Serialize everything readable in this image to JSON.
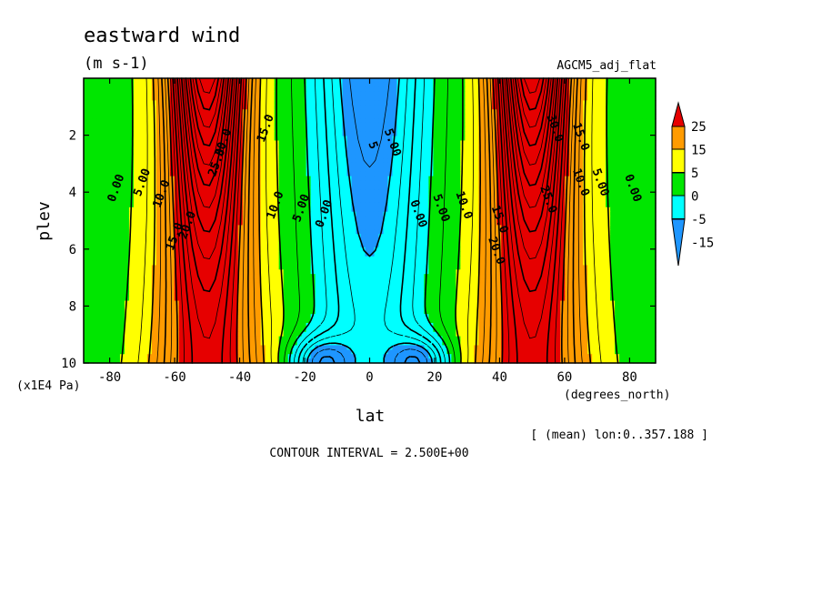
{
  "chart_data": {
    "type": "heatmap",
    "title": "eastward wind",
    "subtitle": "(m s-1)",
    "dataset": "AGCM5_adj_flat",
    "xlabel": "lat",
    "xunits": "(degrees_north)",
    "ylabel": "plev",
    "yunits": "(x1E4 Pa)",
    "footer": "[ (mean) lon:0..357.188 ]",
    "contour_interval_text": "CONTOUR INTERVAL = 2.500E+00",
    "xlim": [
      -88,
      88
    ],
    "ylim": [
      10,
      0
    ],
    "xticks": [
      -80,
      -60,
      -40,
      -20,
      0,
      20,
      40,
      60,
      80
    ],
    "yticks": [
      2,
      4,
      6,
      8,
      10
    ],
    "color_levels": [
      -15,
      -5,
      0,
      5,
      15,
      25
    ],
    "colorbar_labels": [
      "25",
      "15",
      "5",
      "0",
      "-5",
      "-15"
    ],
    "colors": [
      "#1e96ff",
      "#00ffff",
      "#00e600",
      "#ffff00",
      "#ff9b00",
      "#e60000"
    ],
    "contour_labels": [
      {
        "text": "0.00",
        "lat": -77,
        "plev": 3.9
      },
      {
        "text": "5.00",
        "lat": -69,
        "plev": 3.7
      },
      {
        "text": "10.0",
        "lat": -63,
        "plev": 4.1
      },
      {
        "text": "15.0",
        "lat": -59,
        "plev": 5.6
      },
      {
        "text": "20.0",
        "lat": -55,
        "plev": 5.2
      },
      {
        "text": "25.0",
        "lat": -46,
        "plev": 3.0
      },
      {
        "text": "30.0",
        "lat": -44,
        "plev": 2.3
      },
      {
        "text": "15.0",
        "lat": -31,
        "plev": 1.8
      },
      {
        "text": "10.0",
        "lat": -28,
        "plev": 4.5
      },
      {
        "text": "5.00",
        "lat": -20,
        "plev": 4.6
      },
      {
        "text": "0.00",
        "lat": -13,
        "plev": 4.8
      },
      {
        "text": "5.00",
        "lat": 6,
        "plev": 2.3
      },
      {
        "text": "5",
        "lat": 0,
        "plev": 2.4
      },
      {
        "text": "0.00",
        "lat": 14,
        "plev": 4.8
      },
      {
        "text": "5.00",
        "lat": 21,
        "plev": 4.6
      },
      {
        "text": "10.0",
        "lat": 28,
        "plev": 4.5
      },
      {
        "text": "15.0",
        "lat": 39,
        "plev": 5.0
      },
      {
        "text": "20.0",
        "lat": 38,
        "plev": 6.1
      },
      {
        "text": "25.0",
        "lat": 54,
        "plev": 4.3
      },
      {
        "text": "30.0",
        "lat": 56,
        "plev": 1.8
      },
      {
        "text": "15.0",
        "lat": 64,
        "plev": 2.1
      },
      {
        "text": "10.0",
        "lat": 64,
        "plev": 3.7
      },
      {
        "text": "5.00",
        "lat": 70,
        "plev": 3.7
      },
      {
        "text": "0.00",
        "lat": 80,
        "plev": 3.9
      }
    ],
    "field_model": {
      "jet_core_lat": 50,
      "jet_top_max": 50,
      "jet_low_level_max": 22,
      "easterly_min_upper": -20,
      "easterly_min_lower": -15,
      "polar_min": -2
    }
  }
}
